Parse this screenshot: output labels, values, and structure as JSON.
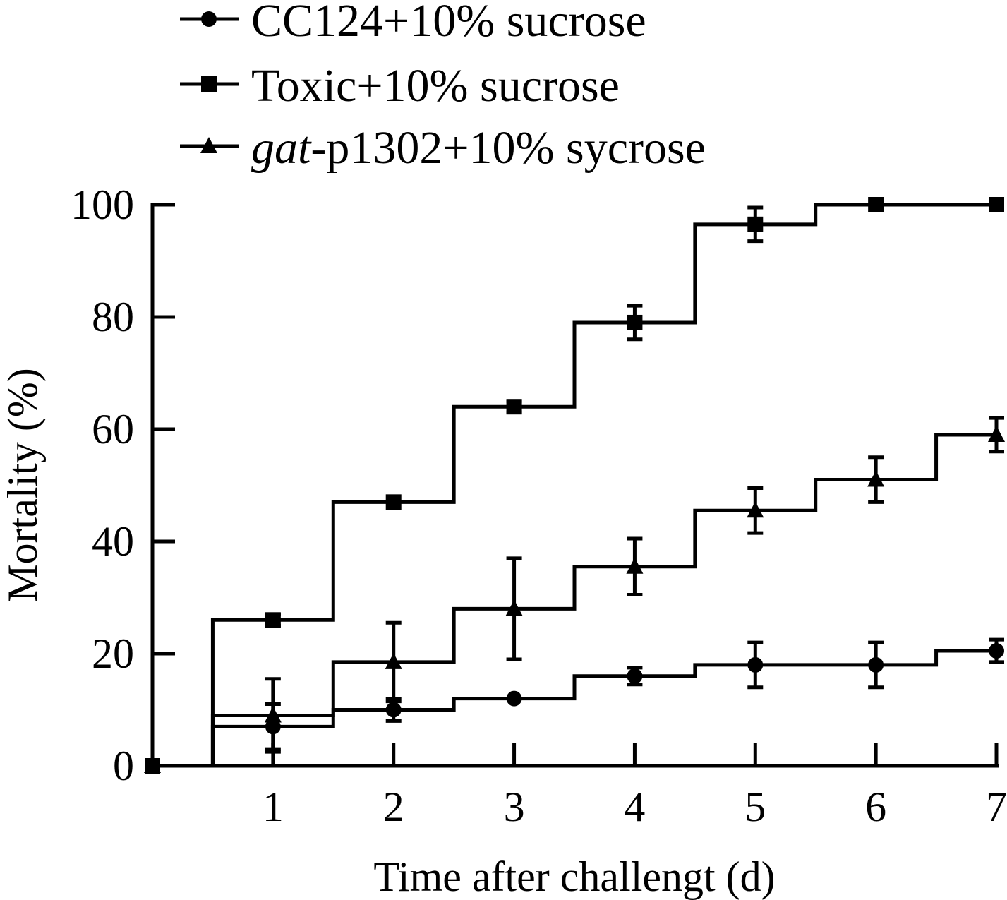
{
  "chart_data": {
    "type": "line",
    "xlabel": "Time after challengt (d)",
    "ylabel": "Mortality (%)",
    "xlim": [
      0,
      7
    ],
    "ylim": [
      0,
      100
    ],
    "xticks": [
      1,
      2,
      3,
      4,
      5,
      6,
      7
    ],
    "yticks": [
      0,
      20,
      40,
      60,
      80,
      100
    ],
    "grid": false,
    "legend_position": "top-left",
    "step": "mid",
    "series": [
      {
        "name": "CC124+10% sucrose",
        "name_prefix": "",
        "name_italic": "",
        "name_rest": "CC124+10% sucrose",
        "marker": "circle",
        "x": [
          0,
          1,
          2,
          3,
          4,
          5,
          6,
          7
        ],
        "y": [
          0,
          7,
          10,
          12,
          16,
          18,
          18,
          20.5
        ],
        "err": [
          0,
          4,
          2,
          0,
          1.5,
          4,
          4,
          2
        ]
      },
      {
        "name": "Toxic+10% sucrose",
        "name_prefix": "",
        "name_italic": "",
        "name_rest": "Toxic+10% sucrose",
        "marker": "square",
        "x": [
          0,
          1,
          2,
          3,
          4,
          5,
          6,
          7
        ],
        "y": [
          0,
          26,
          47,
          64,
          79,
          96.5,
          100,
          100
        ],
        "err": [
          0,
          1,
          0,
          1,
          3,
          3,
          0,
          0
        ]
      },
      {
        "name": "gat-p1302+10% sycrose",
        "name_prefix": "",
        "name_italic": "gat",
        "name_rest": "-p1302+10% sycrose",
        "marker": "triangle",
        "x": [
          0,
          1,
          2,
          3,
          4,
          5,
          6,
          7
        ],
        "y": [
          0,
          9,
          18.5,
          28,
          35.5,
          45.5,
          51,
          59
        ],
        "err": [
          0,
          6.5,
          7,
          9,
          5,
          4,
          4,
          3
        ]
      }
    ]
  }
}
